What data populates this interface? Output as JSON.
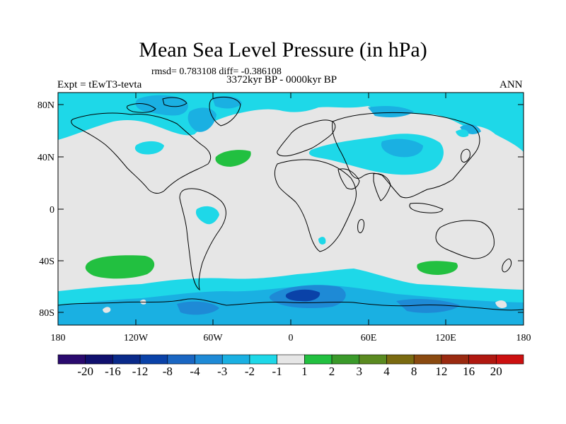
{
  "header": {
    "title": "Mean Sea Level Pressure (in hPa)",
    "stats": "rmsd= 0.783108 diff= -0.386108",
    "left_label": "Expt = tEwT3-tevta",
    "center_label": "3372kyr BP - 0000kyr BP",
    "right_label": "ANN"
  },
  "axes": {
    "lat_labels": [
      "80N",
      "40N",
      "0",
      "40S",
      "80S"
    ],
    "lon_labels": [
      "180",
      "120W",
      "60W",
      "0",
      "60E",
      "120E",
      "180"
    ]
  },
  "colorbar": {
    "labels": [
      "-20",
      "-16",
      "-12",
      "-8",
      "-4",
      "-3",
      "-2",
      "-1",
      "1",
      "2",
      "3",
      "4",
      "8",
      "12",
      "16",
      "20"
    ],
    "colors": [
      "#2a0a6e",
      "#10106e",
      "#0a2a8a",
      "#0a42a8",
      "#1a66c2",
      "#1e8ad6",
      "#1ab0e2",
      "#1ed8e8",
      "#e6e6e6",
      "#22c040",
      "#3a9a2a",
      "#5a8a20",
      "#7a6a10",
      "#8a4a10",
      "#9a2a10",
      "#b01810",
      "#cc1010"
    ]
  },
  "colors": {
    "land_neutral": "#e6e6e6",
    "cyan": "#1ed8e8",
    "light_blue": "#1ab0e2",
    "mid_blue": "#1e8ad6",
    "green": "#22c040"
  }
}
